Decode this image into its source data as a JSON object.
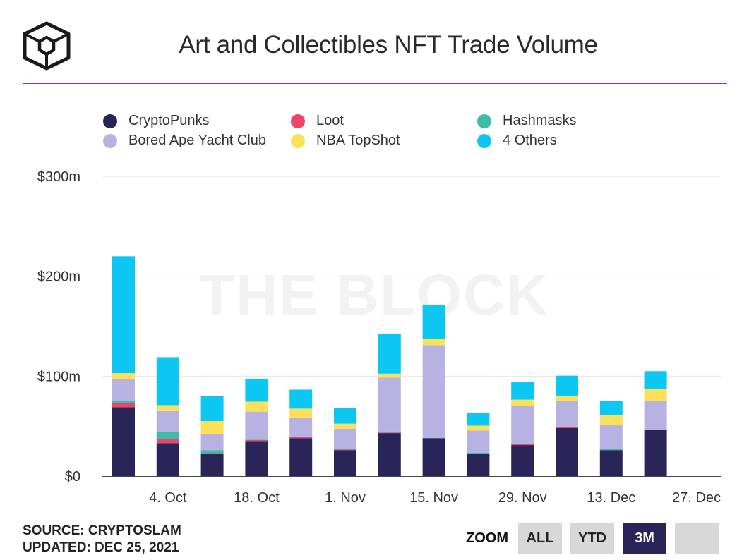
{
  "title": "Art and Collectibles NFT Trade Volume",
  "colors": {
    "accent_rule": "#8a2be2",
    "series": [
      "#2a2559",
      "#f0436a",
      "#3dbda8",
      "#b8b2e2",
      "#fde05a",
      "#0bc7f2"
    ]
  },
  "legend": [
    {
      "label": "CryptoPunks",
      "color": "#2a2559"
    },
    {
      "label": "Bored Ape Yacht Club",
      "color": "#b8b2e2"
    },
    {
      "label": "Loot",
      "color": "#f0436a"
    },
    {
      "label": "NBA TopShot",
      "color": "#fde05a"
    },
    {
      "label": "Hashmasks",
      "color": "#3dbda8"
    },
    {
      "label": "4 Others",
      "color": "#0bc7f2"
    }
  ],
  "watermark": "THE BLOCK",
  "source": {
    "line1": "SOURCE: CRYPTOSLAM",
    "line2": "UPDATED: DEC 25, 2021"
  },
  "zoom": {
    "label": "ZOOM",
    "buttons": [
      {
        "label": "ALL",
        "active": false
      },
      {
        "label": "YTD",
        "active": false
      },
      {
        "label": "3M",
        "active": true
      },
      {
        "label": "",
        "active": false
      }
    ]
  },
  "chart_data": {
    "type": "bar",
    "stacked": true,
    "title": "Art and Collectibles NFT Trade Volume",
    "xlabel": "",
    "ylabel": "",
    "ylim": [
      0,
      300
    ],
    "y_ticks": [
      {
        "value": 0,
        "label": "$0"
      },
      {
        "value": 100,
        "label": "$100m"
      },
      {
        "value": 200,
        "label": "$200m"
      },
      {
        "value": 300,
        "label": "$300m"
      }
    ],
    "x_ticks": [
      "4. Oct",
      "18. Oct",
      "1. Nov",
      "15. Nov",
      "29. Nov",
      "13. Dec",
      "27. Dec"
    ],
    "grid": true,
    "legend_position": "top",
    "categories": [
      "2021-09-27",
      "2021-10-04",
      "2021-10-11",
      "2021-10-18",
      "2021-10-25",
      "2021-11-01",
      "2021-11-08",
      "2021-11-15",
      "2021-11-22",
      "2021-11-29",
      "2021-12-06",
      "2021-12-13",
      "2021-12-20"
    ],
    "series": [
      {
        "name": "CryptoPunks",
        "color": "#2a2559",
        "values": [
          69,
          33,
          22,
          35,
          38,
          26,
          43,
          38,
          22,
          31,
          48,
          26,
          46
        ]
      },
      {
        "name": "Loot",
        "color": "#f0436a",
        "values": [
          4,
          4,
          1,
          1,
          1,
          0.5,
          0.5,
          0,
          0.5,
          1,
          1,
          0,
          0
        ]
      },
      {
        "name": "Hashmasks",
        "color": "#3dbda8",
        "values": [
          2,
          7,
          3,
          0.5,
          0.5,
          1,
          1,
          0,
          1,
          0.5,
          0.5,
          1,
          0
        ]
      },
      {
        "name": "Bored Ape Yacht Club",
        "color": "#b8b2e2",
        "values": [
          22,
          21,
          16,
          28,
          19,
          20,
          54,
          93,
          22,
          38,
          26,
          24,
          29
        ]
      },
      {
        "name": "NBA TopShot",
        "color": "#fde05a",
        "values": [
          6,
          6,
          13,
          10,
          9,
          5,
          4,
          6,
          5,
          6,
          5,
          10,
          12
        ]
      },
      {
        "name": "4 Others",
        "color": "#0bc7f2",
        "values": [
          117,
          48,
          25,
          23,
          19,
          16,
          40,
          34,
          13,
          18,
          20,
          14,
          18
        ]
      }
    ]
  }
}
